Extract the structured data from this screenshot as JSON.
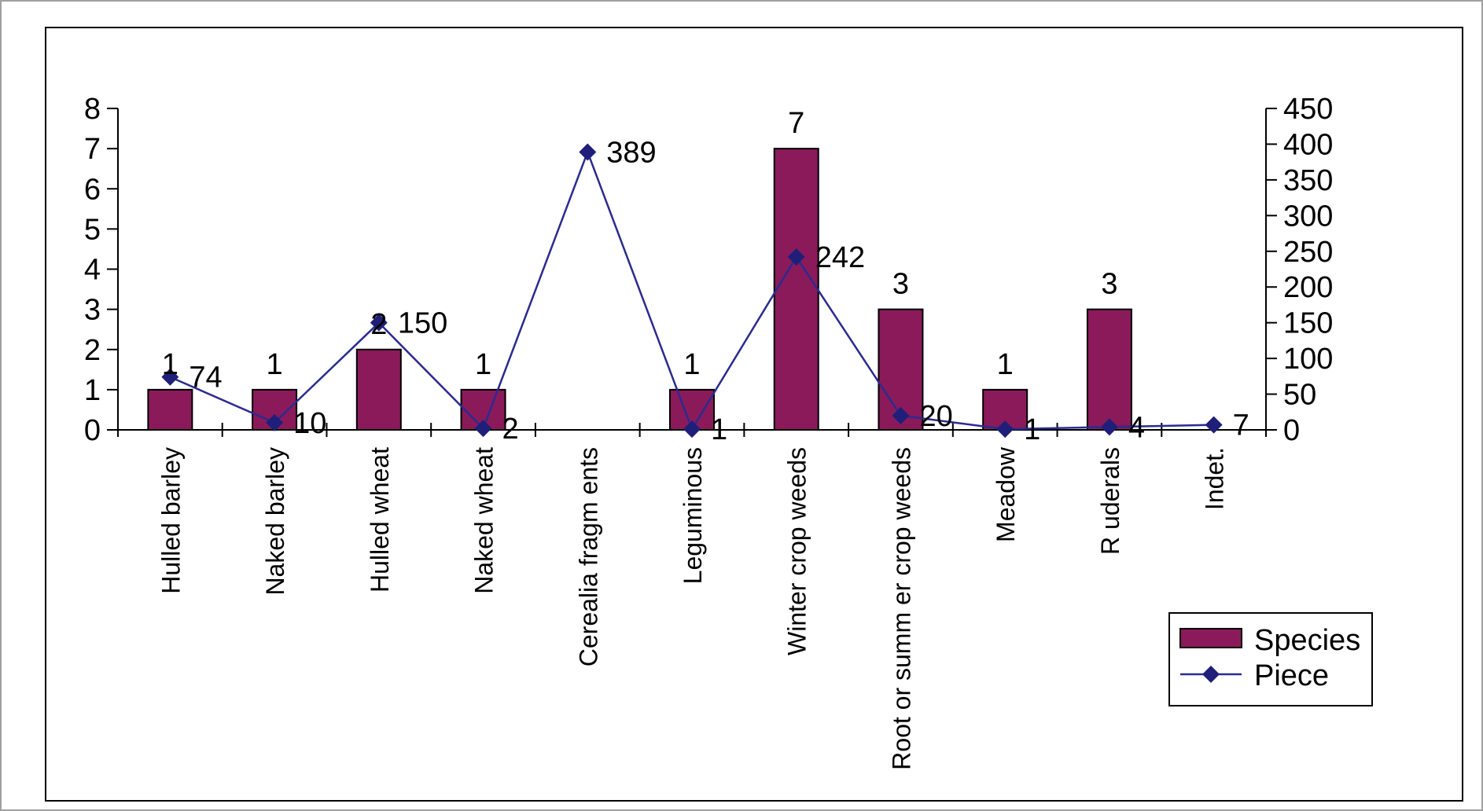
{
  "chart_data": {
    "type": "bar",
    "categories": [
      "Hulled barley",
      "Naked barley",
      "Hulled wheat",
      "Naked wheat",
      "Cerealia fragm ents",
      "Leguminous",
      "Winter crop weeds",
      "Root or summ er crop weeds",
      "Meadow",
      "R uderals",
      "Indet."
    ],
    "series": [
      {
        "name": "Species",
        "kind": "bar",
        "axis": "left",
        "values": [
          1,
          1,
          2,
          1,
          null,
          1,
          7,
          3,
          1,
          3,
          null
        ],
        "labels": [
          "1",
          "1",
          "2",
          "1",
          "",
          "1",
          "7",
          "3",
          "1",
          "3",
          ""
        ]
      },
      {
        "name": "Piece",
        "kind": "line",
        "axis": "right",
        "marker": "diamond",
        "values": [
          74,
          10,
          150,
          2,
          389,
          1,
          242,
          20,
          1,
          4,
          7
        ],
        "labels": [
          "74",
          "10",
          "150",
          "2",
          "389",
          "1",
          "242",
          "20",
          "1",
          "4",
          "7"
        ]
      }
    ],
    "y_left": {
      "range": [
        0,
        8
      ],
      "ticks": [
        "0",
        "1",
        "2",
        "3",
        "4",
        "5",
        "6",
        "7",
        "8"
      ]
    },
    "y_right": {
      "range": [
        0,
        450
      ],
      "ticks": [
        "0",
        "50",
        "100",
        "150",
        "200",
        "250",
        "300",
        "350",
        "400",
        "450"
      ]
    },
    "title": "",
    "xlabel": "",
    "ylabel": "",
    "grid": false,
    "legend": {
      "position": "bottom-right",
      "entries": [
        "Species",
        "Piece"
      ]
    },
    "colors": {
      "bar": "#8b1a5a",
      "line": "#2b2b8f",
      "marker": "#1f1f7a",
      "axis": "#000000",
      "frame": "#000000",
      "outer_border": "#a0a0a0"
    }
  }
}
